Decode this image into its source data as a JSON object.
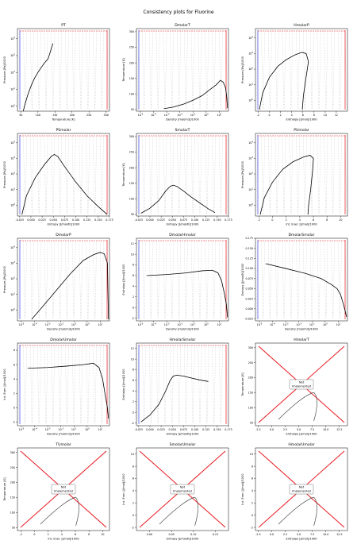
{
  "figure": {
    "title": "Consistency plots for Fluorine"
  },
  "note_label": "Not\nImplemented",
  "chart_data": [
    {
      "type": "line",
      "title": "PT",
      "xlabel": "Temperature [K]",
      "ylabel": "Pressure [Pa]/1000",
      "xscale": "linear",
      "yscale": "log",
      "xlim": [
        40,
        310
      ],
      "ylim": [
        0.5,
        40000
      ],
      "xticks": [
        "50",
        "100",
        "150",
        "200",
        "250",
        "300"
      ],
      "yticks": [
        "10^0",
        "10^1",
        "10^2",
        "10^3",
        "10^4"
      ],
      "curve": {
        "x": [
          53.5,
          60,
          70,
          80,
          90,
          100,
          110,
          120,
          130,
          144
        ],
        "y": [
          0.25,
          0.9,
          4.5,
          16,
          45,
          100,
          200,
          380,
          650,
          5200
        ]
      }
    },
    {
      "type": "line",
      "title": "DmolarT",
      "xlabel": "Density [mol/m3]/1000",
      "ylabel": "Temperature [K]",
      "xscale": "log",
      "yscale": "linear",
      "xlim": [
        5e-06,
        50
      ],
      "ylim": [
        45,
        310
      ],
      "xticks": [
        "10^-5",
        "10^-4",
        "10^-3",
        "10^-2",
        "10^-1",
        "10^0",
        "10^1"
      ],
      "yticks": [
        "50",
        "100",
        "150",
        "200",
        "250",
        "300"
      ],
      "curve": {
        "x": [
          0.0006,
          0.003,
          0.02,
          0.1,
          0.5,
          2,
          6,
          12,
          20,
          30,
          37,
          42
        ],
        "y": [
          53,
          58,
          68,
          80,
          95,
          115,
          130,
          144,
          138,
          120,
          90,
          55
        ]
      }
    },
    {
      "type": "line",
      "title": "HmolarP",
      "xlabel": "Enthalpy [J/mol]/1000",
      "ylabel": "Pressure [Pa]/1000",
      "xscale": "linear",
      "yscale": "log",
      "xlim": [
        -2.5,
        14
      ],
      "ylim": [
        0.2,
        40000
      ],
      "xticks": [
        "-2",
        "0",
        "2",
        "4",
        "6",
        "8",
        "10",
        "12"
      ],
      "yticks": [
        "10^0",
        "10^1",
        "10^2",
        "10^3",
        "10^4"
      ],
      "curve": {
        "x": [
          -1.8,
          -1.2,
          0,
          1.5,
          3,
          4.5,
          5.8,
          6.6,
          7.0,
          6.5,
          6.1,
          5.9
        ],
        "y": [
          0.25,
          3,
          30,
          150,
          400,
          800,
          1200,
          1000,
          300,
          20,
          2,
          0.25
        ]
      }
    },
    {
      "type": "line",
      "title": "PSmolar",
      "xlabel": "Entropy [J/mol/K]/1000",
      "ylabel": "Pressure [Pa]/1000",
      "xscale": "linear",
      "yscale": "log",
      "xlim": [
        -0.03,
        0.175
      ],
      "ylim": [
        0.2,
        40000
      ],
      "xticks": [
        "-0.025",
        "0.000",
        "0.025",
        "0.050",
        "0.075",
        "0.100",
        "0.125",
        "0.150",
        "0.175"
      ],
      "yticks": [
        "10^0",
        "10^1",
        "10^2",
        "10^3",
        "10^4"
      ],
      "curve": {
        "x": [
          -0.02,
          -0.01,
          0.01,
          0.03,
          0.045,
          0.052,
          0.06,
          0.075,
          0.1,
          0.125,
          0.15,
          0.17
        ],
        "y": [
          0.25,
          4,
          60,
          400,
          1300,
          1800,
          1300,
          300,
          30,
          4,
          0.8,
          0.25
        ]
      }
    },
    {
      "type": "line",
      "title": "SmolarT",
      "xlabel": "Entropy [J/mol/K]/1000",
      "ylabel": "Temperature [K]",
      "xscale": "linear",
      "yscale": "linear",
      "xlim": [
        -0.03,
        0.175
      ],
      "ylim": [
        45,
        310
      ],
      "xticks": [
        "-0.025",
        "0.000",
        "0.025",
        "0.050",
        "0.075",
        "0.100",
        "0.125",
        "0.150",
        "0.175"
      ],
      "yticks": [
        "50",
        "100",
        "150",
        "200",
        "250",
        "300"
      ],
      "curve": {
        "x": [
          -0.02,
          0.0,
          0.02,
          0.035,
          0.045,
          0.052,
          0.06,
          0.075,
          0.09,
          0.11,
          0.13,
          0.145
        ],
        "y": [
          54,
          70,
          95,
          125,
          140,
          144,
          140,
          125,
          108,
          88,
          68,
          56
        ]
      }
    },
    {
      "type": "line",
      "title": "PUmolar",
      "xlabel": "Int. Ener. [J/mol]/1000",
      "ylabel": "Pressure [Pa]/1000",
      "xscale": "linear",
      "yscale": "log",
      "xlim": [
        -2.5,
        11
      ],
      "ylim": [
        0.2,
        40000
      ],
      "xticks": [
        "-2",
        "0",
        "2",
        "4",
        "6",
        "8",
        "10"
      ],
      "yticks": [
        "10^0",
        "10^1",
        "10^2",
        "10^3",
        "10^4"
      ],
      "curve": {
        "x": [
          -1.8,
          -1.2,
          0,
          1.5,
          3,
          4.5,
          5.5,
          6.0,
          5.9,
          5.6,
          5.3,
          5.2
        ],
        "y": [
          0.25,
          3,
          30,
          200,
          600,
          1200,
          1600,
          1000,
          200,
          10,
          1,
          0.25
        ]
      }
    },
    {
      "type": "line",
      "title": "DmolarP",
      "xlabel": "Density [mol/m3]/1000",
      "ylabel": "Pressure [Pa]/1000",
      "xscale": "log",
      "yscale": "log",
      "xlim": [
        5e-06,
        50
      ],
      "ylim": [
        0.2,
        40000
      ],
      "xticks": [
        "10^-5",
        "10^-4",
        "10^-3",
        "10^-2",
        "10^-1",
        "10^0",
        "10^1"
      ],
      "yticks": [
        "10^0",
        "10^1",
        "10^2",
        "10^3",
        "10^4"
      ],
      "curve": {
        "x": [
          6e-05,
          0.0005,
          0.005,
          0.05,
          0.5,
          3,
          10,
          20,
          35,
          42
        ],
        "y": [
          0.25,
          2,
          20,
          200,
          1500,
          3500,
          5000,
          4000,
          1000,
          0.25
        ]
      }
    },
    {
      "type": "line",
      "title": "DmolarHmolar",
      "xlabel": "Density [mol/m3]/1000",
      "ylabel": "Enthalpy [J/mol]/1000",
      "xscale": "log",
      "yscale": "linear",
      "xlim": [
        5e-06,
        50
      ],
      "ylim": [
        -2.5,
        13
      ],
      "xticks": [
        "10^-5",
        "10^-4",
        "10^-3",
        "10^-2",
        "10^-1",
        "10^0",
        "10^1"
      ],
      "yticks": [
        "-2",
        "0",
        "2",
        "4",
        "6",
        "8",
        "10",
        "12"
      ],
      "curve": {
        "x": [
          3e-05,
          0.001,
          0.03,
          0.5,
          3,
          8,
          15,
          25,
          35,
          42
        ],
        "y": [
          6.0,
          6.2,
          6.5,
          6.9,
          7.0,
          6.5,
          5.0,
          2.5,
          0.5,
          -1.8
        ]
      }
    },
    {
      "type": "line",
      "title": "DmolarSmolar",
      "xlabel": "Density [mol/m3]/1000",
      "ylabel": "Entropy [J/mol/K]/1000",
      "xscale": "log",
      "yscale": "linear",
      "xlim": [
        5e-06,
        50
      ],
      "ylim": [
        -0.03,
        0.175
      ],
      "xticks": [
        "10^-5",
        "10^-4",
        "10^-3",
        "10^-2",
        "10^-1",
        "10^0",
        "10^1"
      ],
      "yticks": [
        "-0.025",
        "0.000",
        "0.025",
        "0.050",
        "0.075",
        "0.100",
        "0.125",
        "0.150",
        "0.175"
      ],
      "curve": {
        "x": [
          3e-05,
          0.001,
          0.03,
          0.5,
          3,
          8,
          15,
          25,
          35,
          42
        ],
        "y": [
          0.112,
          0.1,
          0.088,
          0.075,
          0.06,
          0.05,
          0.035,
          0.01,
          -0.008,
          -0.02
        ]
      }
    },
    {
      "type": "line",
      "title": "DmolarUmolar",
      "xlabel": "Density [mol/m3]/1000",
      "ylabel": "Int. Ener. [J/mol]/1000",
      "xscale": "log",
      "yscale": "linear",
      "xlim": [
        5e-06,
        50
      ],
      "ylim": [
        -2.5,
        9
      ],
      "xticks": [
        "10^-5",
        "10^-4",
        "10^-3",
        "10^-2",
        "10^-1",
        "10^0",
        "10^1"
      ],
      "yticks": [
        "-2",
        "0",
        "2",
        "4",
        "6",
        "8"
      ],
      "curve": {
        "x": [
          3e-05,
          0.001,
          0.03,
          0.5,
          3,
          8,
          15,
          25,
          35,
          42
        ],
        "y": [
          5.5,
          5.6,
          5.8,
          6.0,
          6.2,
          5.6,
          4.0,
          1.5,
          0.0,
          -1.5
        ]
      }
    },
    {
      "type": "line",
      "title": "HmolarSmolar",
      "xlabel": "Entropy [J/mol/K]/1000",
      "ylabel": "Enthalpy [J/mol]/1000",
      "xscale": "linear",
      "yscale": "linear",
      "xlim": [
        -0.03,
        0.175
      ],
      "ylim": [
        -2.5,
        13
      ],
      "xticks": [
        "-0.025",
        "0.000",
        "0.025",
        "0.050",
        "0.075",
        "0.100",
        "0.125",
        "0.150",
        "0.175"
      ],
      "yticks": [
        "-2",
        "0",
        "2",
        "4",
        "6",
        "8",
        "10",
        "12"
      ],
      "curve": {
        "x": [
          -0.02,
          0.0,
          0.02,
          0.035,
          0.045,
          0.052,
          0.06,
          0.075,
          0.09,
          0.11,
          0.13
        ],
        "y": [
          -1.8,
          -0.5,
          1.5,
          4.0,
          6.0,
          6.8,
          7.0,
          6.8,
          6.5,
          6.1,
          5.8
        ]
      }
    },
    {
      "type": "line",
      "title": "HmolarT",
      "xlabel": "Enthalpy [J/mol]/1000",
      "ylabel": "Temperature [K]",
      "xscale": "linear",
      "yscale": "linear",
      "xlim": [
        -3,
        14
      ],
      "ylim": [
        40,
        315
      ],
      "xticks": [
        "-2.5",
        "0.0",
        "2.5",
        "5.0",
        "7.5",
        "10.0",
        "12.5"
      ],
      "yticks": [
        "50",
        "100",
        "150",
        "200",
        "250",
        "300"
      ],
      "not_implemented": true
    },
    {
      "type": "line",
      "title": "TUmolar",
      "xlabel": "Int. Ener. [J/mol]/1000",
      "ylabel": "Temperature [K]",
      "xscale": "linear",
      "yscale": "linear",
      "xlim": [
        -2.5,
        11
      ],
      "ylim": [
        40,
        315
      ],
      "xticks": [
        "-2",
        "0",
        "2",
        "4",
        "6",
        "8",
        "10"
      ],
      "yticks": [
        "50",
        "100",
        "150",
        "200",
        "250",
        "300"
      ],
      "not_implemented": true
    },
    {
      "type": "line",
      "title": "SmolarUmolar",
      "xlabel": "Entropy [J/mol/K]/1000",
      "ylabel": "Int. Ener. [J/mol]/1000",
      "xscale": "linear",
      "yscale": "linear",
      "xlim": [
        -0.03,
        0.18
      ],
      "ylim": [
        -2.5,
        11
      ],
      "xticks": [
        "0.00",
        "0.05",
        "0.10",
        "0.15"
      ],
      "yticks": [
        "-2",
        "0",
        "2",
        "4",
        "6",
        "8",
        "10"
      ],
      "not_implemented": true
    },
    {
      "type": "line",
      "title": "HmolarUmolar",
      "xlabel": "Enthalpy [J/mol]/1000",
      "ylabel": "Int. Ener. [J/mol]/1000",
      "xscale": "linear",
      "yscale": "linear",
      "xlim": [
        -3,
        14
      ],
      "ylim": [
        -2.5,
        11
      ],
      "xticks": [
        "-2.5",
        "0.0",
        "2.5",
        "5.0",
        "7.5",
        "10.0",
        "12.5"
      ],
      "yticks": [
        "-2",
        "0",
        "2",
        "4",
        "6",
        "8",
        "10"
      ],
      "not_implemented": true
    }
  ]
}
